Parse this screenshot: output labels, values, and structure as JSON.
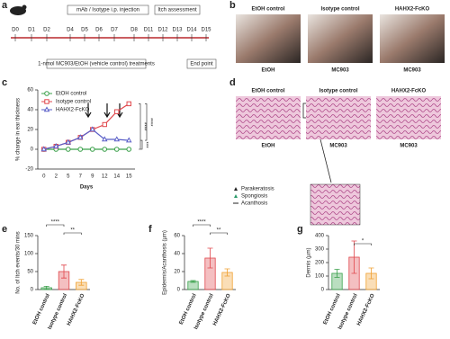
{
  "panel_a": {
    "label": "a",
    "days": [
      "D0",
      "D1",
      "D2",
      "D4",
      "D5",
      "D6",
      "D7",
      "D8",
      "D11",
      "D12",
      "D13",
      "D14",
      "D15"
    ],
    "injection": "mAb / Isotype i.p. injection",
    "itch": "Itch assessment",
    "treatment": "1-nmol MC903/EtOH (vehicle control) treatments",
    "end": "End point"
  },
  "panel_b": {
    "label": "b",
    "groups": [
      "EtOH control",
      "Isotype control",
      "HAHX2-FcKO"
    ],
    "treatments": [
      "EtOH",
      "MC903",
      "MC903"
    ]
  },
  "panel_d": {
    "label": "d",
    "groups": [
      "EtOH control",
      "Isotype control",
      "HAHX2-FcKO"
    ],
    "treatments": [
      "EtOH",
      "MC903",
      "MC903"
    ],
    "legend": [
      "Parakeratosis",
      "Spongiosis",
      "Acanthosis"
    ]
  },
  "chart_data": [
    {
      "type": "line",
      "label": "c",
      "x_label": "Days",
      "y_label": "% change in ear thickness",
      "categories": [
        "0",
        "2",
        "5",
        "7",
        "9",
        "12",
        "14",
        "15"
      ],
      "ylim": [
        -20,
        60
      ],
      "yticks": [
        -20,
        0,
        20,
        40,
        60
      ],
      "legend": "upper-left",
      "annotations": [
        "****",
        "****",
        "***"
      ],
      "series": [
        {
          "name": "EtOH control",
          "color": "#3aa04a",
          "marker": "circle",
          "values": [
            0,
            0,
            0,
            0,
            0,
            0,
            0,
            0
          ]
        },
        {
          "name": "Isotype control",
          "color": "#e0474c",
          "marker": "square",
          "values": [
            0,
            3,
            7,
            12,
            20,
            25,
            38,
            46
          ]
        },
        {
          "name": "HAHX2-FcKO",
          "color": "#5a5fc8",
          "marker": "triangle",
          "values": [
            0,
            3,
            7,
            12,
            20,
            10,
            10,
            9
          ]
        }
      ]
    },
    {
      "type": "bar",
      "label": "e",
      "y_label": "No. of Itch events/30 mins",
      "categories": [
        "EtOH control",
        "Isotype control",
        "HAHX2-FcKO"
      ],
      "colors": [
        "#3aa04a",
        "#e0474c",
        "#f0a030"
      ],
      "values": [
        5,
        50,
        20
      ],
      "errors": [
        4,
        18,
        8
      ],
      "ylim": [
        0,
        150
      ],
      "yticks": [
        0,
        50,
        100,
        150
      ],
      "annotations": [
        "****",
        "**"
      ]
    },
    {
      "type": "bar",
      "label": "f",
      "y_label": "Epidermis/Acanthosis (µm)",
      "categories": [
        "EtOH control",
        "Isotype control",
        "HAHX2-FcKO"
      ],
      "colors": [
        "#3aa04a",
        "#e0474c",
        "#f0a030"
      ],
      "values": [
        9,
        35,
        19
      ],
      "errors": [
        1,
        11,
        4
      ],
      "ylim": [
        0,
        60
      ],
      "yticks": [
        0,
        20,
        40,
        60
      ],
      "annotations": [
        "****",
        "**"
      ]
    },
    {
      "type": "bar",
      "label": "g",
      "y_label": "Dermis (µm)",
      "categories": [
        "EtOH control",
        "Isotype control",
        "HAHX2-FcKO"
      ],
      "colors": [
        "#3aa04a",
        "#e0474c",
        "#f0a030"
      ],
      "values": [
        120,
        240,
        120
      ],
      "errors": [
        30,
        120,
        40
      ],
      "ylim": [
        0,
        400
      ],
      "yticks": [
        0,
        100,
        200,
        300,
        400
      ],
      "annotations": [
        "*"
      ]
    }
  ]
}
